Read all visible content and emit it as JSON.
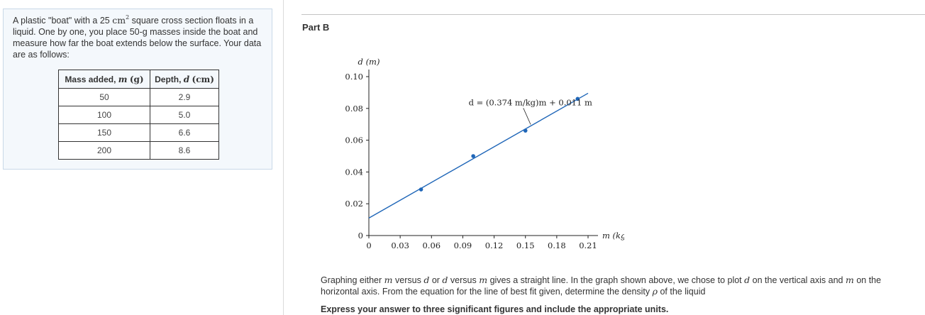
{
  "problem": {
    "text_1": "A plastic \"boat\" with a 25",
    "area_unit": "cm",
    "area_exp": "2",
    "text_2": "square cross section floats in a liquid. One by one, you place 50-g masses inside the boat and measure how far the boat extends below the surface. Your data are as follows:"
  },
  "table": {
    "header_mass_prefix": "Mass added,",
    "header_mass_var": "m",
    "header_mass_unit": "(g)",
    "header_depth_prefix": "Depth,",
    "header_depth_var": "d",
    "header_depth_unit": "(cm)",
    "rows": [
      {
        "mass": "50",
        "depth": "2.9"
      },
      {
        "mass": "100",
        "depth": "5.0"
      },
      {
        "mass": "150",
        "depth": "6.6"
      },
      {
        "mass": "200",
        "depth": "8.6"
      }
    ]
  },
  "part": {
    "title": "Part B"
  },
  "chart_data": {
    "type": "scatter",
    "ylabel": "d (m)",
    "xlabel": "m (kg)",
    "xlim": [
      0,
      0.21
    ],
    "ylim": [
      0,
      0.1
    ],
    "x_ticks": [
      "0",
      "0.03",
      "0.06",
      "0.09",
      "0.12",
      "0.15",
      "0.18",
      "0.21"
    ],
    "y_ticks": [
      "0",
      "0.02",
      "0.04",
      "0.06",
      "0.08",
      "0.10"
    ],
    "points": [
      {
        "x": 0.05,
        "y": 0.029
      },
      {
        "x": 0.1,
        "y": 0.05
      },
      {
        "x": 0.15,
        "y": 0.066
      },
      {
        "x": 0.2,
        "y": 0.086
      }
    ],
    "fit_line": {
      "slope": 0.374,
      "intercept": 0.011,
      "x_end": 0.21
    },
    "annotation": "d = (0.374 m/kg)m + 0.011 m",
    "colors": {
      "line": "#1f66b8",
      "points": "#1f66b8",
      "axis": "#222222"
    }
  },
  "bottom": {
    "t1": "Graphing either",
    "m1": "m",
    "t2": "versus",
    "d1": "d",
    "t3": "or",
    "d2": "d",
    "t4": "versus",
    "m2": "m",
    "t5": "gives a straight line. In the graph shown above, we chose to plot",
    "d3": "d",
    "t6": "on the vertical axis and",
    "m3": "m",
    "t7": "on the horizontal axis. From the equation for the line of best fit given, determine the density",
    "rho": "ρ",
    "t8": "of the liquid",
    "instruction": "Express your answer to three significant figures and include the appropriate units."
  }
}
